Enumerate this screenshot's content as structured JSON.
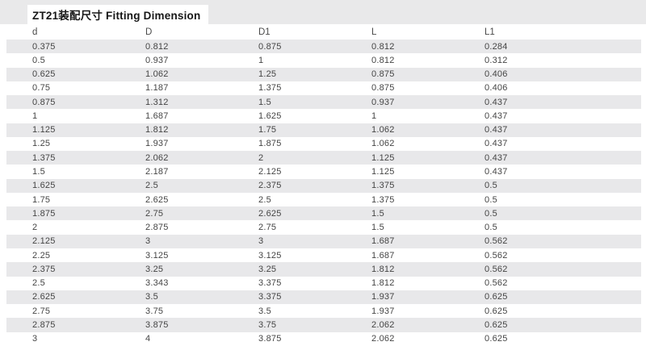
{
  "title": "ZT21装配尺寸 Fitting Dimension",
  "table": {
    "columns": [
      "d",
      "D",
      "D1",
      "L",
      "L1"
    ],
    "rows": [
      [
        "0.375",
        "0.812",
        "0.875",
        "0.812",
        "0.284"
      ],
      [
        "0.5",
        "0.937",
        "1",
        "0.812",
        "0.312"
      ],
      [
        "0.625",
        "1.062",
        "1.25",
        "0.875",
        "0.406"
      ],
      [
        "0.75",
        "1.187",
        "1.375",
        "0.875",
        "0.406"
      ],
      [
        "0.875",
        "1.312",
        "1.5",
        "0.937",
        "0.437"
      ],
      [
        "1",
        "1.687",
        "1.625",
        "1",
        "0.437"
      ],
      [
        "1.125",
        "1.812",
        "1.75",
        "1.062",
        "0.437"
      ],
      [
        "1.25",
        "1.937",
        "1.875",
        "1.062",
        "0.437"
      ],
      [
        "1.375",
        "2.062",
        "2",
        "1.125",
        "0.437"
      ],
      [
        "1.5",
        "2.187",
        "2.125",
        "1.125",
        "0.437"
      ],
      [
        "1.625",
        "2.5",
        "2.375",
        "1.375",
        "0.5"
      ],
      [
        "1.75",
        "2.625",
        "2.5",
        "1.375",
        "0.5"
      ],
      [
        "1.875",
        "2.75",
        "2.625",
        "1.5",
        "0.5"
      ],
      [
        "2",
        "2.875",
        "2.75",
        "1.5",
        "0.5"
      ],
      [
        "2.125",
        "3",
        "3",
        "1.687",
        "0.562"
      ],
      [
        "2.25",
        "3.125",
        "3.125",
        "1.687",
        "0.562"
      ],
      [
        "2.375",
        "3.25",
        "3.25",
        "1.812",
        "0.562"
      ],
      [
        "2.5",
        "3.343",
        "3.375",
        "1.812",
        "0.562"
      ],
      [
        "2.625",
        "3.5",
        "3.375",
        "1.937",
        "0.625"
      ],
      [
        "2.75",
        "3.75",
        "3.5",
        "1.937",
        "0.625"
      ],
      [
        "2.875",
        "3.875",
        "3.75",
        "2.062",
        "0.625"
      ],
      [
        "3",
        "4",
        "3.875",
        "2.062",
        "0.625"
      ]
    ]
  },
  "colors": {
    "stripe": "#e8e8ea",
    "header_band": "#e9e9ea",
    "text": "#454545",
    "title_text": "#171717"
  }
}
